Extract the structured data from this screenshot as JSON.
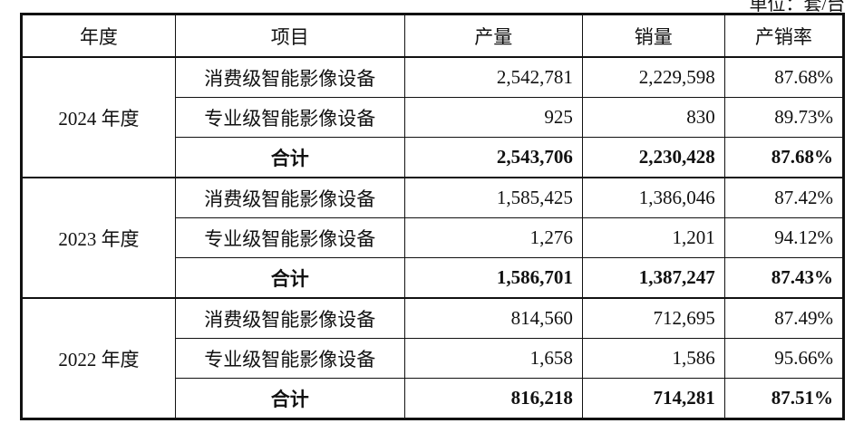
{
  "unit_note": "单位：套/台",
  "headers": [
    "年度",
    "项目",
    "产量",
    "销量",
    "产销率"
  ],
  "groups": [
    {
      "year": "2024 年度",
      "rows": [
        {
          "item": "消费级智能影像设备",
          "production": "2,542,781",
          "sales": "2,229,598",
          "rate": "87.68%"
        },
        {
          "item": "专业级智能影像设备",
          "production": "925",
          "sales": "830",
          "rate": "89.73%"
        },
        {
          "item": "合计",
          "production": "2,543,706",
          "sales": "2,230,428",
          "rate": "87.68%"
        }
      ]
    },
    {
      "year": "2023 年度",
      "rows": [
        {
          "item": "消费级智能影像设备",
          "production": "1,585,425",
          "sales": "1,386,046",
          "rate": "87.42%"
        },
        {
          "item": "专业级智能影像设备",
          "production": "1,276",
          "sales": "1,201",
          "rate": "94.12%"
        },
        {
          "item": "合计",
          "production": "1,586,701",
          "sales": "1,387,247",
          "rate": "87.43%"
        }
      ]
    },
    {
      "year": "2022 年度",
      "rows": [
        {
          "item": "消费级智能影像设备",
          "production": "814,560",
          "sales": "712,695",
          "rate": "87.49%"
        },
        {
          "item": "专业级智能影像设备",
          "production": "1,658",
          "sales": "1,586",
          "rate": "95.66%"
        },
        {
          "item": "合计",
          "production": "816,218",
          "sales": "714,281",
          "rate": "87.51%"
        }
      ]
    }
  ]
}
